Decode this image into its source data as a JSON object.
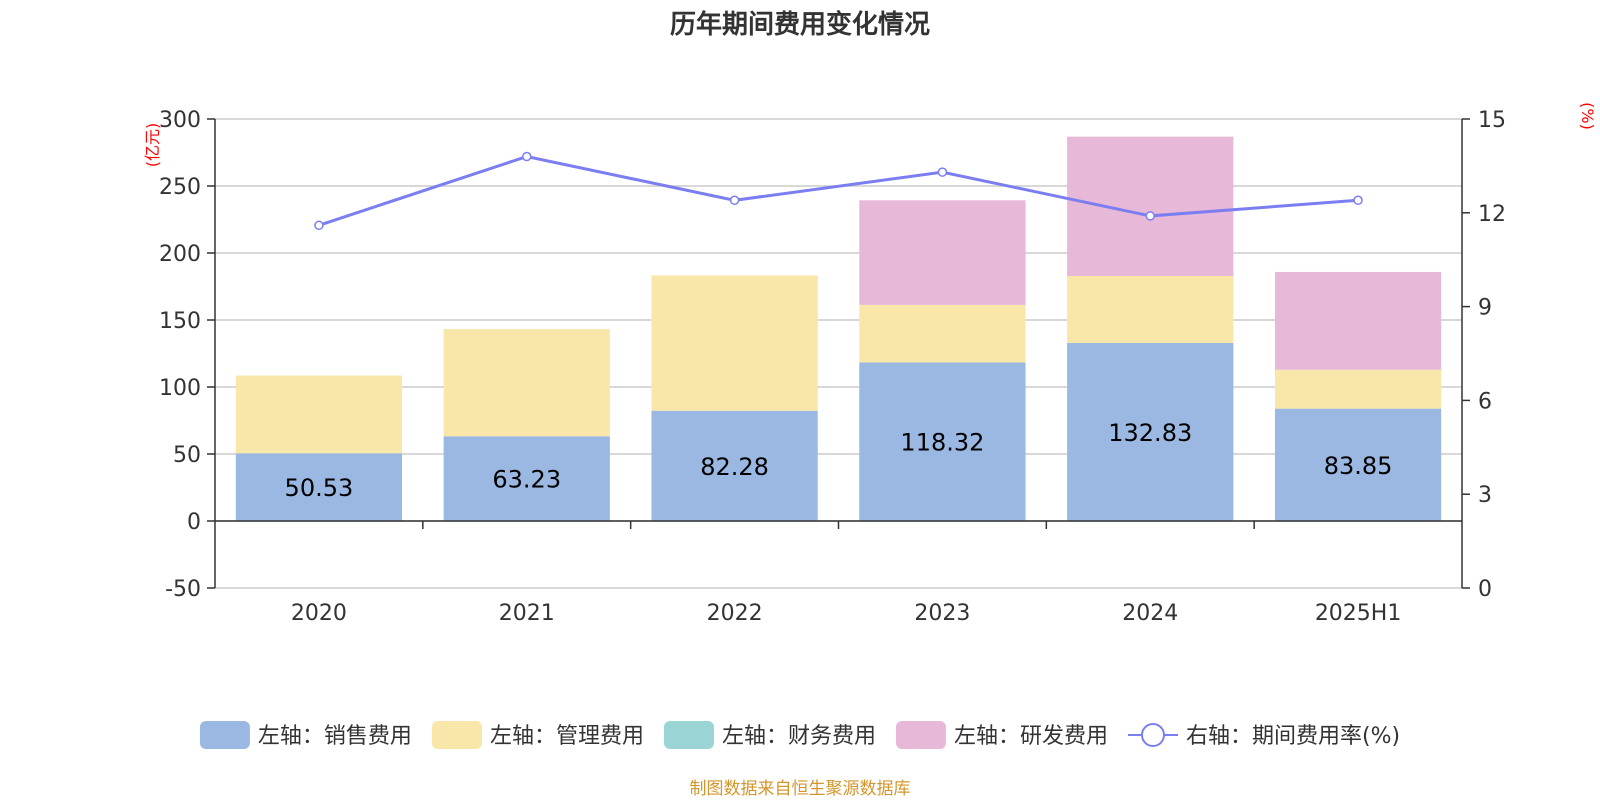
{
  "chart_data": {
    "type": "bar",
    "title": "历年期间费用变化情况",
    "categories": [
      "2020",
      "2021",
      "2022",
      "2023",
      "2024",
      "2025H1"
    ],
    "left_axis": {
      "unit": "(亿元)",
      "ylim": [
        -50,
        300
      ],
      "ticks": [
        300,
        250,
        200,
        150,
        100,
        50,
        0,
        -50
      ]
    },
    "right_axis": {
      "unit": "(%)",
      "ylim": [
        0,
        15
      ],
      "ticks": [
        15,
        12,
        9,
        6,
        3,
        0
      ]
    },
    "stacked_series": [
      {
        "name": "左轴：销售费用",
        "color": "#9bb8e2",
        "values": [
          50.53,
          63.23,
          82.28,
          118.32,
          132.83,
          83.85
        ],
        "labels": [
          "50.53",
          "63.23",
          "82.28",
          "118.32",
          "132.83",
          "83.85"
        ]
      },
      {
        "name": "左轴：管理费用",
        "color": "#f8e7a8",
        "values": [
          58,
          80,
          101,
          43,
          50,
          29
        ]
      },
      {
        "name": "左轴：财务费用",
        "color": "#9bd4d4",
        "values": [
          0,
          0,
          0,
          0,
          0,
          0
        ]
      },
      {
        "name": "左轴：研发费用",
        "color": "#e8b8d9",
        "values": [
          0,
          0,
          0,
          78,
          104,
          73
        ]
      }
    ],
    "line_series": {
      "name": "右轴：期间费用率(%)",
      "color": "#7b7ef0",
      "values": [
        11.6,
        13.8,
        12.4,
        13.3,
        11.9,
        12.4
      ]
    },
    "grid": true,
    "legend_position": "bottom"
  },
  "source_text": "制图数据来自恒生聚源数据库"
}
